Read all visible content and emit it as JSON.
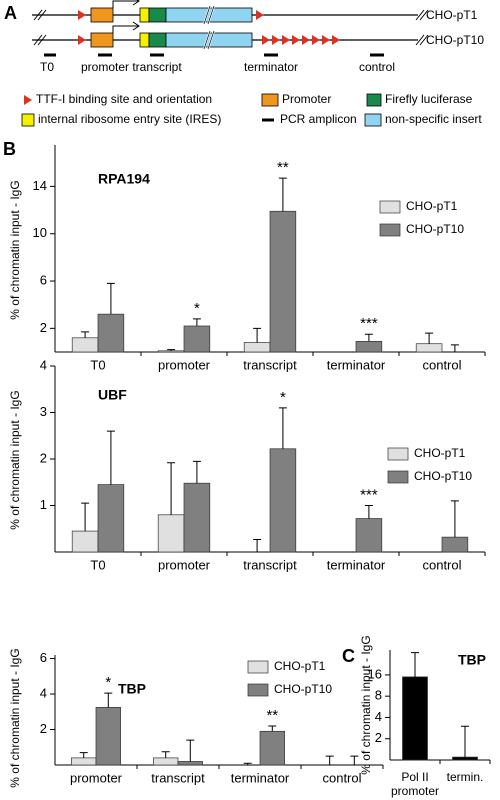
{
  "diagram": {
    "panel": "A",
    "constructs": [
      "CHO-pT1",
      "CHO-pT10"
    ],
    "amplicons": [
      "T0",
      "promoter",
      "transcript",
      "terminator",
      "control"
    ],
    "legend": [
      "TTF-I binding site and orientation",
      "Promoter",
      "Firefly luciferase",
      "internal ribosome entry site (IRES)",
      "PCR amplicon",
      "non-specific insert"
    ]
  },
  "chart_data": [
    {
      "type": "bar",
      "panel": "B",
      "title": "RPA194",
      "y_label": "% of chromatin input - IgG",
      "categories": [
        "T0",
        "promoter",
        "transcript",
        "terminator",
        "control"
      ],
      "series": [
        {
          "name": "CHO-pT1",
          "color": "#e0e0e0",
          "values": [
            1.2,
            0.1,
            0.8,
            0,
            0.7
          ],
          "errors": [
            0.5,
            0.1,
            1.2,
            0,
            0.9
          ]
        },
        {
          "name": "CHO-pT10",
          "color": "#808080",
          "values": [
            3.2,
            2.2,
            11.9,
            0.9,
            0
          ],
          "errors": [
            2.6,
            0.6,
            2.8,
            0.6,
            0.6
          ]
        }
      ],
      "significance": [
        null,
        "*",
        "**",
        "***",
        null
      ],
      "ylim": [
        0,
        17.5
      ],
      "yticks": [
        2,
        6,
        10,
        14
      ]
    },
    {
      "type": "bar",
      "title": "UBF",
      "y_label": "% of chromatin input - IgG",
      "categories": [
        "T0",
        "promoter",
        "transcript",
        "terminator",
        "control"
      ],
      "series": [
        {
          "name": "CHO-pT1",
          "color": "#e0e0e0",
          "values": [
            0.45,
            0.8,
            0,
            0,
            0
          ],
          "errors": [
            0.6,
            1.12,
            0.27,
            0,
            0
          ]
        },
        {
          "name": "CHO-pT10",
          "color": "#808080",
          "values": [
            1.45,
            1.48,
            2.22,
            0.72,
            0.32
          ],
          "errors": [
            1.15,
            0.47,
            0.88,
            0.28,
            0.78
          ]
        }
      ],
      "significance": [
        null,
        null,
        "*",
        "***",
        null
      ],
      "ylim": [
        0,
        4
      ],
      "yticks": [
        1,
        2,
        3,
        4
      ]
    },
    {
      "type": "bar",
      "title": "TBP",
      "y_label": "% of chromatin input - IgG",
      "categories": [
        "promoter",
        "transcript",
        "terminator",
        "control"
      ],
      "series": [
        {
          "name": "CHO-pT1",
          "color": "#e0e0e0",
          "values": [
            0.4,
            0.4,
            0,
            0
          ],
          "errors": [
            0.3,
            0.35,
            0.1,
            0.5
          ]
        },
        {
          "name": "CHO-pT10",
          "color": "#808080",
          "values": [
            3.25,
            0.2,
            1.9,
            0
          ],
          "errors": [
            0.8,
            1.2,
            0.3,
            0.5
          ]
        }
      ],
      "significance": [
        "*",
        null,
        "**",
        null
      ],
      "ylim": [
        0,
        6.2
      ],
      "yticks": [
        2,
        4,
        6
      ]
    },
    {
      "type": "bar",
      "panel": "C",
      "title": "TBP",
      "y_label": "% of chromatin input - IgG",
      "categories": [
        "Pol II promoter",
        "termin."
      ],
      "series": [
        {
          "color": "#000000",
          "values": [
            15,
            1.1
          ],
          "errors": [
            18,
            1.9
          ]
        }
      ],
      "log_scale": true,
      "ylim": [
        1,
        36
      ],
      "yticks": [
        2,
        4,
        8,
        16
      ]
    }
  ]
}
